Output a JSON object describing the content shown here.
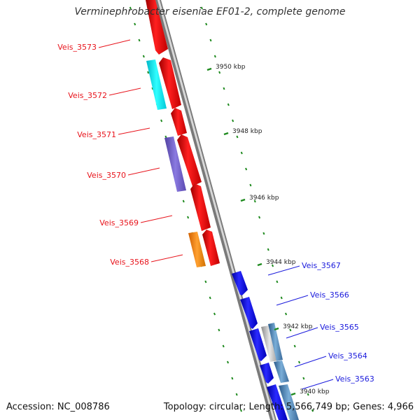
{
  "title": "Verminephrobacter eiseniae EF01-2, complete genome",
  "footer": {
    "accession": "Accession: NC_008786",
    "stats": "Topology: circular; Length: 5,566,749 bp; Genes: 4,966"
  },
  "colors": {
    "reverse_label": "#e8141c",
    "forward_label": "#1a1adc",
    "tick": "#1f8a1f",
    "backbone": "#8a8a8a"
  },
  "ticks": [
    {
      "label": "3950 kbp"
    },
    {
      "label": "3948 kbp"
    },
    {
      "label": "3946 kbp"
    },
    {
      "label": "3944 kbp"
    },
    {
      "label": "3942 kbp"
    },
    {
      "label": "3940 kbp"
    }
  ],
  "genes": [
    {
      "label": "Veis_3573",
      "strand": "reverse",
      "color": "#e8141c"
    },
    {
      "label": "Veis_3572",
      "strand": "reverse",
      "color": "#e8141c"
    },
    {
      "label": "Veis_3571",
      "strand": "reverse",
      "color": "#e8141c"
    },
    {
      "label": "Veis_3570",
      "strand": "reverse",
      "color": "#e8141c"
    },
    {
      "label": "Veis_3569",
      "strand": "reverse",
      "color": "#e8141c"
    },
    {
      "label": "Veis_3568",
      "strand": "reverse",
      "color": "#e8141c"
    },
    {
      "label": "Veis_3567",
      "strand": "forward",
      "color": "#1a1adc"
    },
    {
      "label": "Veis_3566",
      "strand": "forward",
      "color": "#1a1adc"
    },
    {
      "label": "Veis_3565",
      "strand": "forward",
      "color": "#1a1adc"
    },
    {
      "label": "Veis_3564",
      "strand": "forward",
      "color": "#1a1adc"
    },
    {
      "label": "Veis_3563",
      "strand": "forward",
      "color": "#1a1adc"
    }
  ]
}
